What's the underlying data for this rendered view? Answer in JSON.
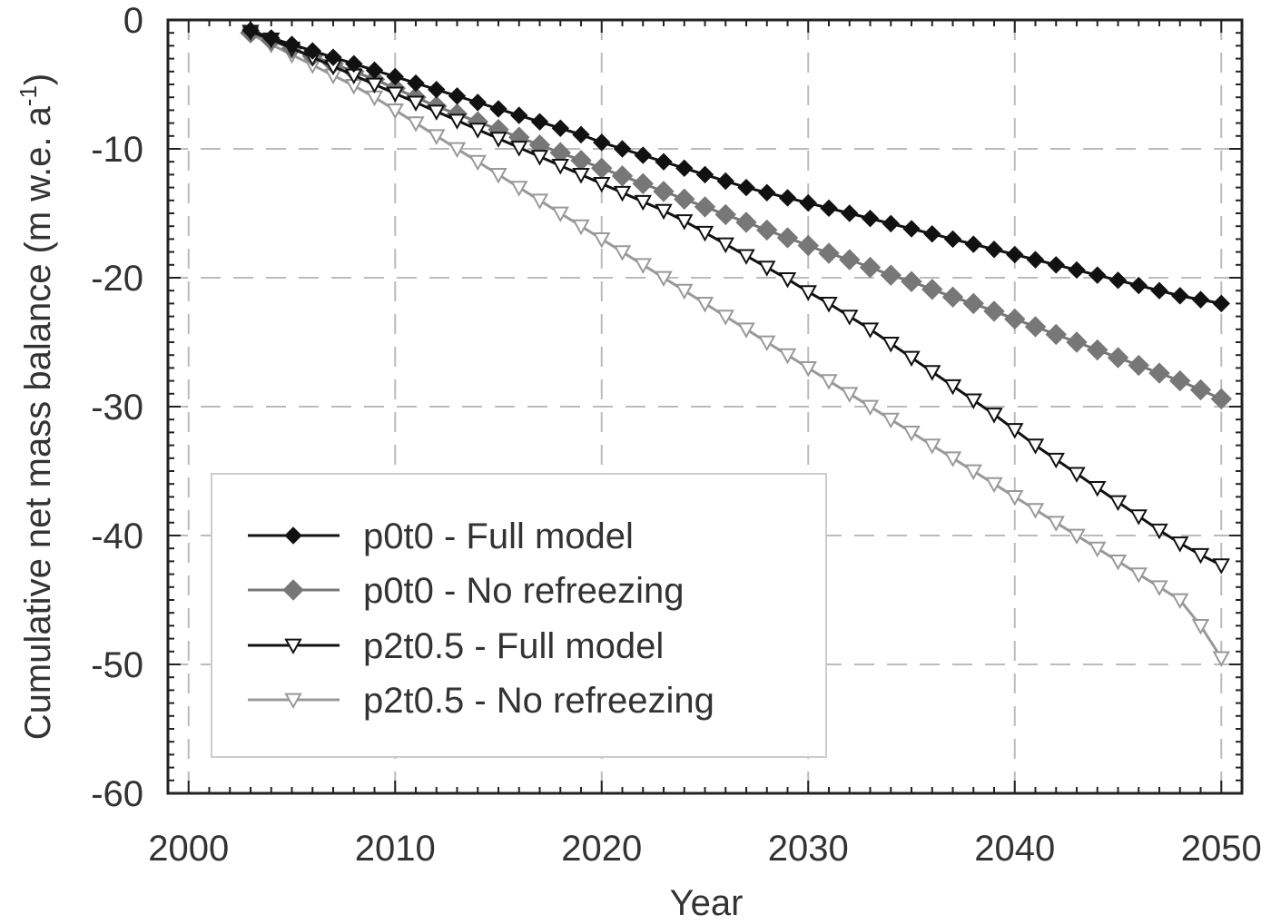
{
  "chart_data": {
    "type": "line",
    "xlabel": "Year",
    "ylabel_main": "Cumulative net mass balance (m w.e. a",
    "ylabel_sup": "-1",
    "ylabel_end": ")",
    "xlim": [
      1999,
      2051
    ],
    "ylim": [
      -60,
      0
    ],
    "xticks": [
      2000,
      2010,
      2020,
      2030,
      2040,
      2050
    ],
    "yticks": [
      0,
      -10,
      -20,
      -30,
      -40,
      -50,
      -60
    ],
    "grid": "dashed",
    "legend_position": "lower-left",
    "x_start": 2003,
    "x_end": 2050,
    "series": [
      {
        "name": "p0t0 - Full model",
        "marker": "diamond-filled",
        "color": "#111111",
        "values": [
          -0.8,
          -1.4,
          -1.9,
          -2.4,
          -2.9,
          -3.4,
          -3.9,
          -4.4,
          -4.9,
          -5.4,
          -5.9,
          -6.4,
          -6.9,
          -7.4,
          -7.9,
          -8.4,
          -8.9,
          -9.5,
          -10.0,
          -10.5,
          -11.0,
          -11.5,
          -12.0,
          -12.5,
          -13.0,
          -13.4,
          -13.8,
          -14.2,
          -14.6,
          -15.0,
          -15.4,
          -15.8,
          -16.2,
          -16.6,
          -17.0,
          -17.4,
          -17.8,
          -18.2,
          -18.6,
          -19.0,
          -19.4,
          -19.8,
          -20.2,
          -20.6,
          -21.0,
          -21.4,
          -21.7,
          -22.0
        ]
      },
      {
        "name": "p0t0 - No refreezing",
        "marker": "diamond-filled",
        "color": "#777777",
        "values": [
          -1.0,
          -1.6,
          -2.2,
          -2.8,
          -3.4,
          -4.0,
          -4.6,
          -5.3,
          -6.0,
          -6.7,
          -7.3,
          -7.9,
          -8.5,
          -9.1,
          -9.7,
          -10.3,
          -10.9,
          -11.5,
          -12.1,
          -12.7,
          -13.3,
          -13.9,
          -14.5,
          -15.1,
          -15.7,
          -16.3,
          -16.9,
          -17.5,
          -18.1,
          -18.6,
          -19.2,
          -19.8,
          -20.3,
          -20.9,
          -21.5,
          -22.0,
          -22.6,
          -23.2,
          -23.8,
          -24.4,
          -25.0,
          -25.6,
          -26.2,
          -26.8,
          -27.4,
          -28.0,
          -28.7,
          -29.4
        ]
      },
      {
        "name": "p2t0.5 - Full model",
        "marker": "triangle-down-open",
        "color": "#111111",
        "values": [
          -0.9,
          -1.5,
          -2.2,
          -2.9,
          -3.6,
          -4.3,
          -5.0,
          -5.7,
          -6.4,
          -7.1,
          -7.8,
          -8.5,
          -9.2,
          -9.9,
          -10.6,
          -11.3,
          -12.0,
          -12.7,
          -13.4,
          -14.1,
          -14.8,
          -15.6,
          -16.5,
          -17.4,
          -18.3,
          -19.2,
          -20.1,
          -21.1,
          -22.0,
          -23.0,
          -24.0,
          -25.1,
          -26.2,
          -27.3,
          -28.4,
          -29.5,
          -30.6,
          -31.8,
          -33.0,
          -34.1,
          -35.2,
          -36.3,
          -37.4,
          -38.5,
          -39.6,
          -40.6,
          -41.5,
          -42.3
        ]
      },
      {
        "name": "p2t0.5 - No refreezing",
        "marker": "triangle-down-open",
        "color": "#999999",
        "values": [
          -1.1,
          -1.9,
          -2.7,
          -3.5,
          -4.3,
          -5.1,
          -6.0,
          -7.0,
          -8.0,
          -9.0,
          -10.0,
          -11.0,
          -12.0,
          -13.0,
          -14.0,
          -15.0,
          -16.0,
          -17.0,
          -18.0,
          -19.0,
          -20.0,
          -21.0,
          -22.0,
          -23.0,
          -24.0,
          -25.0,
          -26.0,
          -27.0,
          -28.0,
          -29.0,
          -30.0,
          -31.0,
          -32.0,
          -33.0,
          -34.0,
          -35.0,
          -36.0,
          -37.0,
          -38.0,
          -39.0,
          -40.0,
          -41.0,
          -42.0,
          -43.0,
          -44.0,
          -45.0,
          -47.0,
          -49.5
        ]
      }
    ]
  }
}
